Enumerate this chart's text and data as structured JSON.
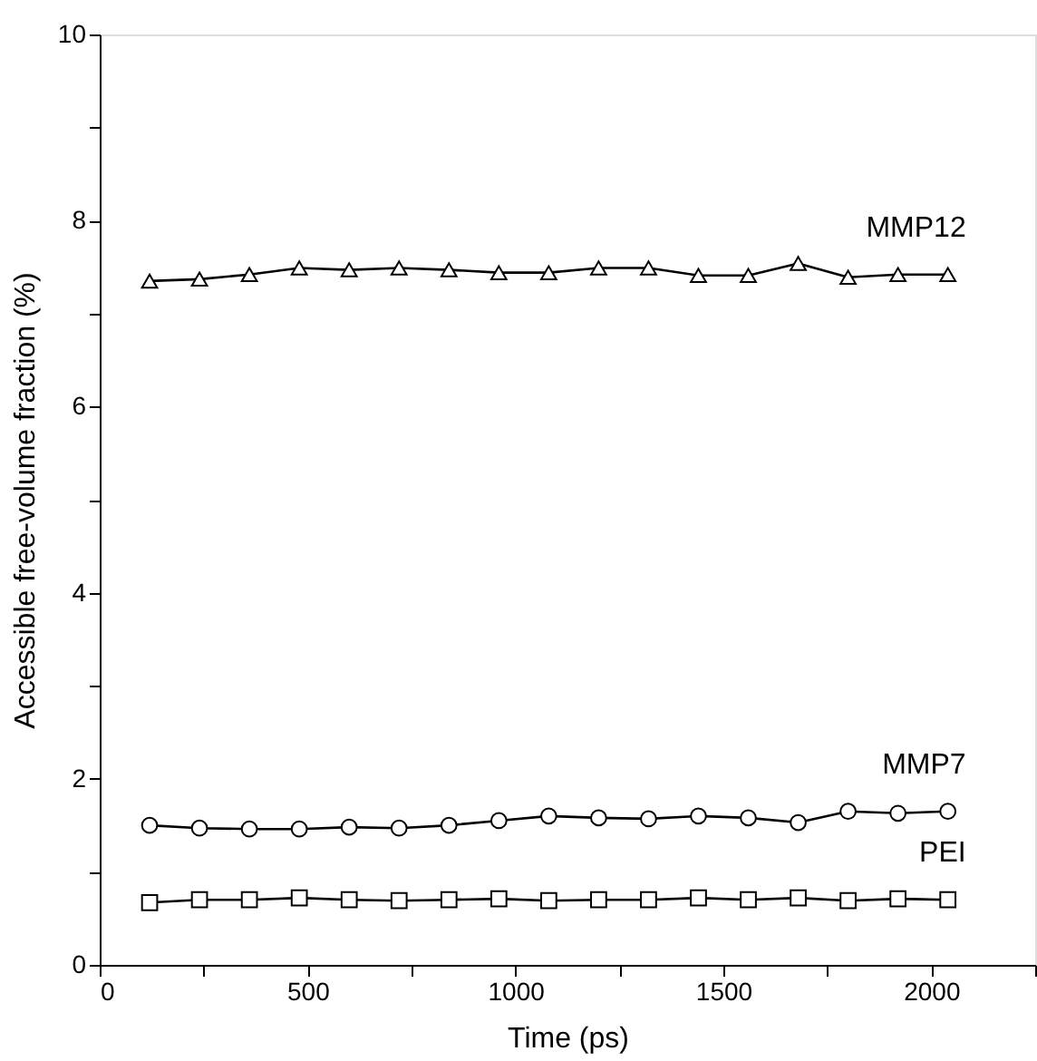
{
  "chart_data": {
    "type": "line",
    "xlabel": "Time (ps)",
    "ylabel": "Accessible free-volume fraction (%)",
    "x": [
      120,
      240,
      360,
      480,
      600,
      720,
      840,
      960,
      1080,
      1200,
      1320,
      1440,
      1560,
      1680,
      1800,
      1920,
      2040
    ],
    "series": [
      {
        "name": "MMP12",
        "color": "#000000",
        "marker": "triangle",
        "values": [
          7.35,
          7.37,
          7.42,
          7.49,
          7.47,
          7.49,
          7.47,
          7.44,
          7.44,
          7.49,
          7.49,
          7.41,
          7.41,
          7.54,
          7.39,
          7.42,
          7.42
        ]
      },
      {
        "name": "MMP7",
        "color": "#000000",
        "marker": "circle",
        "values": [
          1.5,
          1.47,
          1.46,
          1.46,
          1.48,
          1.47,
          1.5,
          1.55,
          1.6,
          1.58,
          1.57,
          1.6,
          1.58,
          1.53,
          1.65,
          1.63,
          1.65
        ]
      },
      {
        "name": "PEI",
        "color": "#000000",
        "marker": "square",
        "values": [
          0.67,
          0.7,
          0.7,
          0.72,
          0.7,
          0.69,
          0.7,
          0.71,
          0.69,
          0.7,
          0.7,
          0.72,
          0.7,
          0.72,
          0.69,
          0.71,
          0.7
        ]
      }
    ],
    "xlim": [
      0,
      2250
    ],
    "xticks": [
      0,
      {
        "value": 250,
        "label": null
      },
      500,
      {
        "value": 750,
        "label": null
      },
      1000,
      {
        "value": 1250,
        "label": null
      },
      1500,
      {
        "value": 1750,
        "label": null
      },
      2000,
      {
        "value": 2250,
        "label": null
      }
    ],
    "ylim": [
      0,
      10
    ],
    "yticks": [
      0,
      {
        "value": 1,
        "label": null
      },
      2,
      {
        "value": 3,
        "label": null
      },
      4,
      {
        "value": 5,
        "label": null
      },
      6,
      {
        "value": 7,
        "label": null
      },
      8,
      {
        "value": 9,
        "label": null
      },
      10
    ],
    "grid": false,
    "line_style": "solid"
  }
}
